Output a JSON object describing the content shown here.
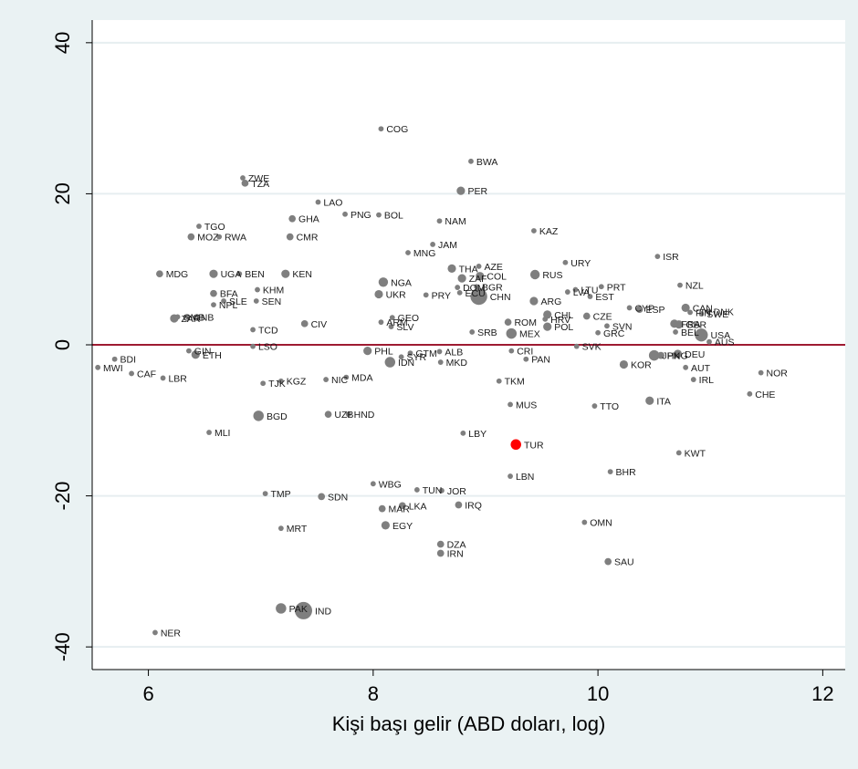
{
  "chart_data": {
    "type": "scatter",
    "xlabel": "Kişi başı gelir (ABD doları, log)",
    "ylabel": "",
    "xlim": [
      5.5,
      12.2
    ],
    "ylim": [
      -43,
      43
    ],
    "xticks": [
      6,
      8,
      10,
      12
    ],
    "yticks": [
      40,
      20,
      0,
      -20,
      -40
    ],
    "reference_line_y": 0,
    "grid": true,
    "colors": {
      "plot_bg": "#ffffff",
      "outer_bg": "#eaf2f3",
      "marker": "#7f7f7f",
      "highlight": "#ff0000",
      "refline": "#9e1b32",
      "grid": "#e6eef0"
    },
    "points": [
      {
        "code": "COG",
        "x": 8.07,
        "y": 28.6,
        "s": 1
      },
      {
        "code": "BWA",
        "x": 8.87,
        "y": 24.3,
        "s": 1
      },
      {
        "code": "ZWE",
        "x": 6.84,
        "y": 22.1,
        "s": 1
      },
      {
        "code": "TZA",
        "x": 6.86,
        "y": 21.4,
        "s": 2
      },
      {
        "code": "PER",
        "x": 8.78,
        "y": 20.4,
        "s": 3
      },
      {
        "code": "LAO",
        "x": 7.51,
        "y": 18.9,
        "s": 1
      },
      {
        "code": "PNG",
        "x": 7.75,
        "y": 17.3,
        "s": 1
      },
      {
        "code": "BOL",
        "x": 8.05,
        "y": 17.2,
        "s": 1
      },
      {
        "code": "GHA",
        "x": 7.28,
        "y": 16.7,
        "s": 2
      },
      {
        "code": "NAM",
        "x": 8.59,
        "y": 16.4,
        "s": 1
      },
      {
        "code": "TGO",
        "x": 6.45,
        "y": 15.7,
        "s": 1
      },
      {
        "code": "KAZ",
        "x": 9.43,
        "y": 15.1,
        "s": 1
      },
      {
        "code": "MOZ",
        "x": 6.38,
        "y": 14.3,
        "s": 2
      },
      {
        "code": "RWA",
        "x": 6.63,
        "y": 14.3,
        "s": 1
      },
      {
        "code": "CMR",
        "x": 7.26,
        "y": 14.3,
        "s": 2
      },
      {
        "code": "JAM",
        "x": 8.53,
        "y": 13.3,
        "s": 1
      },
      {
        "code": "MNG",
        "x": 8.31,
        "y": 12.2,
        "s": 1
      },
      {
        "code": "ISR",
        "x": 10.53,
        "y": 11.7,
        "s": 1
      },
      {
        "code": "URY",
        "x": 9.71,
        "y": 10.9,
        "s": 1
      },
      {
        "code": "AZE",
        "x": 8.94,
        "y": 10.4,
        "s": 1
      },
      {
        "code": "THA",
        "x": 8.7,
        "y": 10.1,
        "s": 3
      },
      {
        "code": "MDG",
        "x": 6.1,
        "y": 9.4,
        "s": 2
      },
      {
        "code": "UGA",
        "x": 6.58,
        "y": 9.4,
        "s": 3
      },
      {
        "code": "BEN",
        "x": 6.81,
        "y": 9.4,
        "s": 1
      },
      {
        "code": "KEN",
        "x": 7.22,
        "y": 9.4,
        "s": 3
      },
      {
        "code": "RUS",
        "x": 9.44,
        "y": 9.3,
        "s": 4
      },
      {
        "code": "COL",
        "x": 8.95,
        "y": 9.1,
        "s": 3
      },
      {
        "code": "ZAF",
        "x": 8.79,
        "y": 8.8,
        "s": 3
      },
      {
        "code": "NGA",
        "x": 8.09,
        "y": 8.3,
        "s": 4
      },
      {
        "code": "BGR",
        "x": 8.92,
        "y": 7.7,
        "s": 1
      },
      {
        "code": "DOM",
        "x": 8.75,
        "y": 7.6,
        "s": 1
      },
      {
        "code": "NZL",
        "x": 10.73,
        "y": 7.9,
        "s": 1
      },
      {
        "code": "PRT",
        "x": 10.03,
        "y": 7.7,
        "s": 1
      },
      {
        "code": "KHM",
        "x": 6.97,
        "y": 7.3,
        "s": 1
      },
      {
        "code": "LTU",
        "x": 9.8,
        "y": 7.3,
        "s": 1
      },
      {
        "code": "LVA",
        "x": 9.73,
        "y": 7.0,
        "s": 1
      },
      {
        "code": "BFA",
        "x": 6.58,
        "y": 6.8,
        "s": 2
      },
      {
        "code": "UKR",
        "x": 8.05,
        "y": 6.7,
        "s": 3
      },
      {
        "code": "PRY",
        "x": 8.47,
        "y": 6.6,
        "s": 1
      },
      {
        "code": "ECU",
        "x": 8.77,
        "y": 6.9,
        "s": 1
      },
      {
        "code": "CHN",
        "x": 8.94,
        "y": 6.4,
        "s": 14
      },
      {
        "code": "EST",
        "x": 9.93,
        "y": 6.4,
        "s": 1
      },
      {
        "code": "SEN",
        "x": 6.96,
        "y": 5.8,
        "s": 1
      },
      {
        "code": "ARG",
        "x": 9.43,
        "y": 5.8,
        "s": 3
      },
      {
        "code": "SLE",
        "x": 6.67,
        "y": 5.8,
        "s": 1
      },
      {
        "code": "NPL",
        "x": 6.58,
        "y": 5.3,
        "s": 1
      },
      {
        "code": "CYP",
        "x": 10.28,
        "y": 4.9,
        "s": 1
      },
      {
        "code": "ESP",
        "x": 10.37,
        "y": 4.7,
        "s": 2
      },
      {
        "code": "CAN",
        "x": 10.78,
        "y": 4.9,
        "s": 3
      },
      {
        "code": "FIN",
        "x": 10.82,
        "y": 4.3,
        "s": 1
      },
      {
        "code": "DNK",
        "x": 10.98,
        "y": 4.4,
        "s": 1
      },
      {
        "code": "SWE",
        "x": 10.92,
        "y": 4.1,
        "s": 1
      },
      {
        "code": "CHL",
        "x": 9.55,
        "y": 4.0,
        "s": 3
      },
      {
        "code": "CZE",
        "x": 9.9,
        "y": 3.8,
        "s": 2
      },
      {
        "code": "GMB",
        "x": 6.26,
        "y": 3.7,
        "s": 1
      },
      {
        "code": "ZAR",
        "x": 6.23,
        "y": 3.5,
        "s": 3
      },
      {
        "code": "GNB",
        "x": 6.35,
        "y": 3.7,
        "s": 1
      },
      {
        "code": "HRV",
        "x": 9.53,
        "y": 3.4,
        "s": 1
      },
      {
        "code": "GEO",
        "x": 8.17,
        "y": 3.6,
        "s": 1
      },
      {
        "code": "ARM",
        "x": 8.07,
        "y": 3.0,
        "s": 1
      },
      {
        "code": "ROM",
        "x": 9.2,
        "y": 3.0,
        "s": 2
      },
      {
        "code": "CIV",
        "x": 7.39,
        "y": 2.8,
        "s": 2
      },
      {
        "code": "SLV",
        "x": 8.16,
        "y": 2.4,
        "s": 1
      },
      {
        "code": "FRA",
        "x": 10.68,
        "y": 2.8,
        "s": 3
      },
      {
        "code": "GBR",
        "x": 10.72,
        "y": 2.7,
        "s": 3
      },
      {
        "code": "SVN",
        "x": 10.08,
        "y": 2.5,
        "s": 1
      },
      {
        "code": "POL",
        "x": 9.55,
        "y": 2.4,
        "s": 3
      },
      {
        "code": "TCD",
        "x": 6.93,
        "y": 2.0,
        "s": 1
      },
      {
        "code": "GRC",
        "x": 10.0,
        "y": 1.6,
        "s": 1
      },
      {
        "code": "SRB",
        "x": 8.88,
        "y": 1.7,
        "s": 1
      },
      {
        "code": "BEL",
        "x": 10.69,
        "y": 1.7,
        "s": 1
      },
      {
        "code": "MEX",
        "x": 9.23,
        "y": 1.5,
        "s": 5
      },
      {
        "code": "USA",
        "x": 10.92,
        "y": 1.3,
        "s": 8
      },
      {
        "code": "AUS",
        "x": 10.99,
        "y": 0.4,
        "s": 1
      },
      {
        "code": "LSO",
        "x": 6.93,
        "y": -0.2,
        "s": 1
      },
      {
        "code": "SVK",
        "x": 9.81,
        "y": -0.2,
        "s": 1
      },
      {
        "code": "PHL",
        "x": 7.95,
        "y": -0.8,
        "s": 3
      },
      {
        "code": "CRI",
        "x": 9.23,
        "y": -0.8,
        "s": 1
      },
      {
        "code": "GIN",
        "x": 6.36,
        "y": -0.8,
        "s": 1
      },
      {
        "code": "ETH",
        "x": 6.42,
        "y": -1.3,
        "s": 3
      },
      {
        "code": "GTM",
        "x": 8.33,
        "y": -1.1,
        "s": 1
      },
      {
        "code": "ALB",
        "x": 8.59,
        "y": -0.9,
        "s": 1
      },
      {
        "code": "HKG",
        "x": 10.56,
        "y": -1.4,
        "s": 2
      },
      {
        "code": "DEU",
        "x": 10.71,
        "y": -1.2,
        "s": 3
      },
      {
        "code": "JPN",
        "x": 10.5,
        "y": -1.4,
        "s": 5
      },
      {
        "code": "SYR",
        "x": 8.25,
        "y": -1.6,
        "s": 1
      },
      {
        "code": "PAN",
        "x": 9.36,
        "y": -1.9,
        "s": 1
      },
      {
        "code": "BDI",
        "x": 5.7,
        "y": -1.9,
        "s": 1
      },
      {
        "code": "IDN",
        "x": 8.15,
        "y": -2.3,
        "s": 5
      },
      {
        "code": "MKD",
        "x": 8.6,
        "y": -2.3,
        "s": 1
      },
      {
        "code": "KOR",
        "x": 10.23,
        "y": -2.6,
        "s": 3
      },
      {
        "code": "AUT",
        "x": 10.78,
        "y": -3.0,
        "s": 1
      },
      {
        "code": "MWI",
        "x": 5.55,
        "y": -3.0,
        "s": 1
      },
      {
        "code": "NOR",
        "x": 11.45,
        "y": -3.7,
        "s": 1
      },
      {
        "code": "CAF",
        "x": 5.85,
        "y": -3.8,
        "s": 1
      },
      {
        "code": "LBR",
        "x": 6.13,
        "y": -4.4,
        "s": 1
      },
      {
        "code": "MDA",
        "x": 7.76,
        "y": -4.3,
        "s": 1
      },
      {
        "code": "NIC",
        "x": 7.58,
        "y": -4.6,
        "s": 1
      },
      {
        "code": "IRL",
        "x": 10.85,
        "y": -4.6,
        "s": 1
      },
      {
        "code": "KGZ",
        "x": 7.18,
        "y": -4.8,
        "s": 1
      },
      {
        "code": "TKM",
        "x": 9.12,
        "y": -4.8,
        "s": 1
      },
      {
        "code": "TJK",
        "x": 7.02,
        "y": -5.1,
        "s": 1
      },
      {
        "code": "CHE",
        "x": 11.35,
        "y": -6.5,
        "s": 1
      },
      {
        "code": "ITA",
        "x": 10.46,
        "y": -7.4,
        "s": 3
      },
      {
        "code": "MUS",
        "x": 9.22,
        "y": -7.9,
        "s": 1
      },
      {
        "code": "TTO",
        "x": 9.97,
        "y": -8.1,
        "s": 1
      },
      {
        "code": "UZB",
        "x": 7.6,
        "y": -9.2,
        "s": 2
      },
      {
        "code": "HND",
        "x": 7.78,
        "y": -9.2,
        "s": 1
      },
      {
        "code": "BGD",
        "x": 6.98,
        "y": -9.4,
        "s": 5
      },
      {
        "code": "MLI",
        "x": 6.54,
        "y": -11.6,
        "s": 1
      },
      {
        "code": "LBY",
        "x": 8.8,
        "y": -11.7,
        "s": 1
      },
      {
        "code": "TUR",
        "x": 9.27,
        "y": -13.2,
        "s": 5,
        "highlight": true
      },
      {
        "code": "KWT",
        "x": 10.72,
        "y": -14.3,
        "s": 1
      },
      {
        "code": "BHR",
        "x": 10.11,
        "y": -16.8,
        "s": 1
      },
      {
        "code": "LBN",
        "x": 9.22,
        "y": -17.4,
        "s": 1
      },
      {
        "code": "WBG",
        "x": 8.0,
        "y": -18.4,
        "s": 1
      },
      {
        "code": "TUN",
        "x": 8.39,
        "y": -19.2,
        "s": 1
      },
      {
        "code": "JOR",
        "x": 8.61,
        "y": -19.3,
        "s": 1
      },
      {
        "code": "TMP",
        "x": 7.04,
        "y": -19.7,
        "s": 1
      },
      {
        "code": "SDN",
        "x": 7.54,
        "y": -20.1,
        "s": 2
      },
      {
        "code": "IRQ",
        "x": 8.76,
        "y": -21.2,
        "s": 2
      },
      {
        "code": "LKA",
        "x": 8.26,
        "y": -21.3,
        "s": 2
      },
      {
        "code": "MAR",
        "x": 8.08,
        "y": -21.7,
        "s": 2
      },
      {
        "code": "OMN",
        "x": 9.88,
        "y": -23.5,
        "s": 1
      },
      {
        "code": "EGY",
        "x": 8.11,
        "y": -23.9,
        "s": 3
      },
      {
        "code": "MRT",
        "x": 7.18,
        "y": -24.3,
        "s": 1
      },
      {
        "code": "DZA",
        "x": 8.6,
        "y": -26.4,
        "s": 2
      },
      {
        "code": "IRN",
        "x": 8.6,
        "y": -27.6,
        "s": 2
      },
      {
        "code": "SAU",
        "x": 10.09,
        "y": -28.7,
        "s": 2
      },
      {
        "code": "PAK",
        "x": 7.18,
        "y": -34.9,
        "s": 5
      },
      {
        "code": "IND",
        "x": 7.38,
        "y": -35.2,
        "s": 15
      },
      {
        "code": "NER",
        "x": 6.06,
        "y": -38.1,
        "s": 1
      }
    ]
  }
}
